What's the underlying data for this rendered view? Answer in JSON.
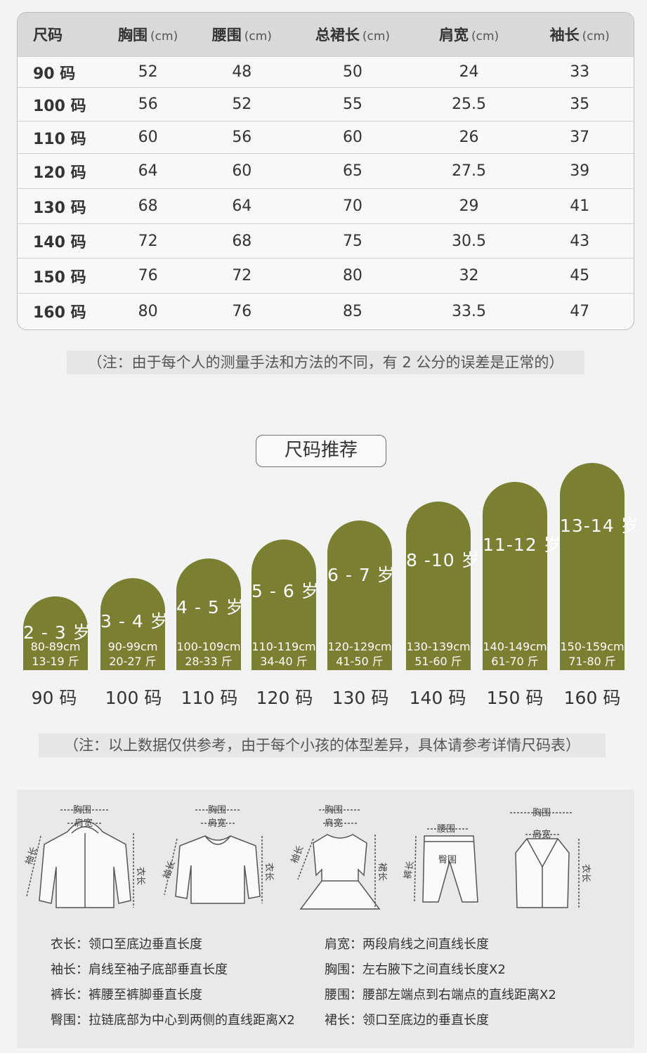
{
  "table": {
    "headers": [
      {
        "label": "尺码",
        "unit": ""
      },
      {
        "label": "胸围",
        "unit": "(cm)"
      },
      {
        "label": "腰围",
        "unit": "(cm)"
      },
      {
        "label": "总裙长",
        "unit": "(cm)"
      },
      {
        "label": "肩宽",
        "unit": "(cm)"
      },
      {
        "label": "袖长",
        "unit": "(cm)"
      }
    ],
    "rows": [
      [
        "90 码",
        "52",
        "48",
        "50",
        "24",
        "33"
      ],
      [
        "100 码",
        "56",
        "52",
        "55",
        "25.5",
        "35"
      ],
      [
        "110 码",
        "60",
        "56",
        "60",
        "26",
        "37"
      ],
      [
        "120 码",
        "64",
        "60",
        "65",
        "27.5",
        "39"
      ],
      [
        "130 码",
        "68",
        "64",
        "70",
        "29",
        "41"
      ],
      [
        "140 码",
        "72",
        "68",
        "75",
        "30.5",
        "43"
      ],
      [
        "150 码",
        "76",
        "72",
        "80",
        "32",
        "45"
      ],
      [
        "160 码",
        "80",
        "76",
        "85",
        "33.5",
        "47"
      ]
    ]
  },
  "note1": "（注：由于每个人的测量手法和方法的不同，有 2 公分的误差是正常的）",
  "recommend_title": "尺码推荐",
  "recommendations": [
    {
      "age": "2 - 3 岁",
      "height": "80-89cm",
      "weight": "13-19 斤",
      "size": "90 码"
    },
    {
      "age": "3 - 4 岁",
      "height": "90-99cm",
      "weight": "20-27 斤",
      "size": "100 码"
    },
    {
      "age": "4 - 5 岁",
      "height": "100-109cm",
      "weight": "28-33 斤",
      "size": "110 码"
    },
    {
      "age": "5 - 6 岁",
      "height": "110-119cm",
      "weight": "34-40 斤",
      "size": "120 码"
    },
    {
      "age": "6 - 7 岁",
      "height": "120-129cm",
      "weight": "41-50 斤",
      "size": "130 码"
    },
    {
      "age": "8 -10 岁",
      "height": "130-139cm",
      "weight": "51-60 斤",
      "size": "140 码"
    },
    {
      "age": "11-12 岁",
      "height": "140-149cm",
      "weight": "61-70 斤",
      "size": "150 码"
    },
    {
      "age": "13-14 岁",
      "height": "150-159cm",
      "weight": "71-80 斤",
      "size": "160 码"
    }
  ],
  "note2": "（注：以上数据仅供参考，由于每个小孩的体型差异，具体请参考详情尺码表）",
  "accent_color": "#7a7f32",
  "garments": [
    {
      "name": "jacket-icon",
      "labels": {
        "chest": "胸围",
        "shoulder": "肩宽",
        "sleeve": "袖长",
        "length": "衣长"
      }
    },
    {
      "name": "sweater-icon",
      "labels": {
        "chest": "胸围",
        "shoulder": "肩宽",
        "sleeve": "袖长",
        "length": "衣长"
      }
    },
    {
      "name": "dress-icon",
      "labels": {
        "chest": "胸围",
        "shoulder": "肩宽",
        "sleeve": "袖长",
        "length": "裙长"
      }
    },
    {
      "name": "pants-icon",
      "labels": {
        "waist": "腰围",
        "hip": "臀围",
        "length": "裤长"
      }
    },
    {
      "name": "vest-icon",
      "labels": {
        "chest": "胸围",
        "shoulder": "肩宽",
        "length": "衣长"
      }
    }
  ],
  "definitions_left": [
    "衣长：领口至底边垂直长度",
    "袖长：肩线至袖子底部垂直长度",
    "裤长：裤腰至裤脚垂直长度",
    "臀围：拉链底部为中心到两侧的直线距离X2"
  ],
  "definitions_right": [
    "肩宽：两段肩线之间直线长度",
    "胸围：左右腋下之间直线长度X2",
    "腰围：腰部左端点到右端点的直线距离X2",
    "裙长：领口至底边的垂直长度"
  ]
}
